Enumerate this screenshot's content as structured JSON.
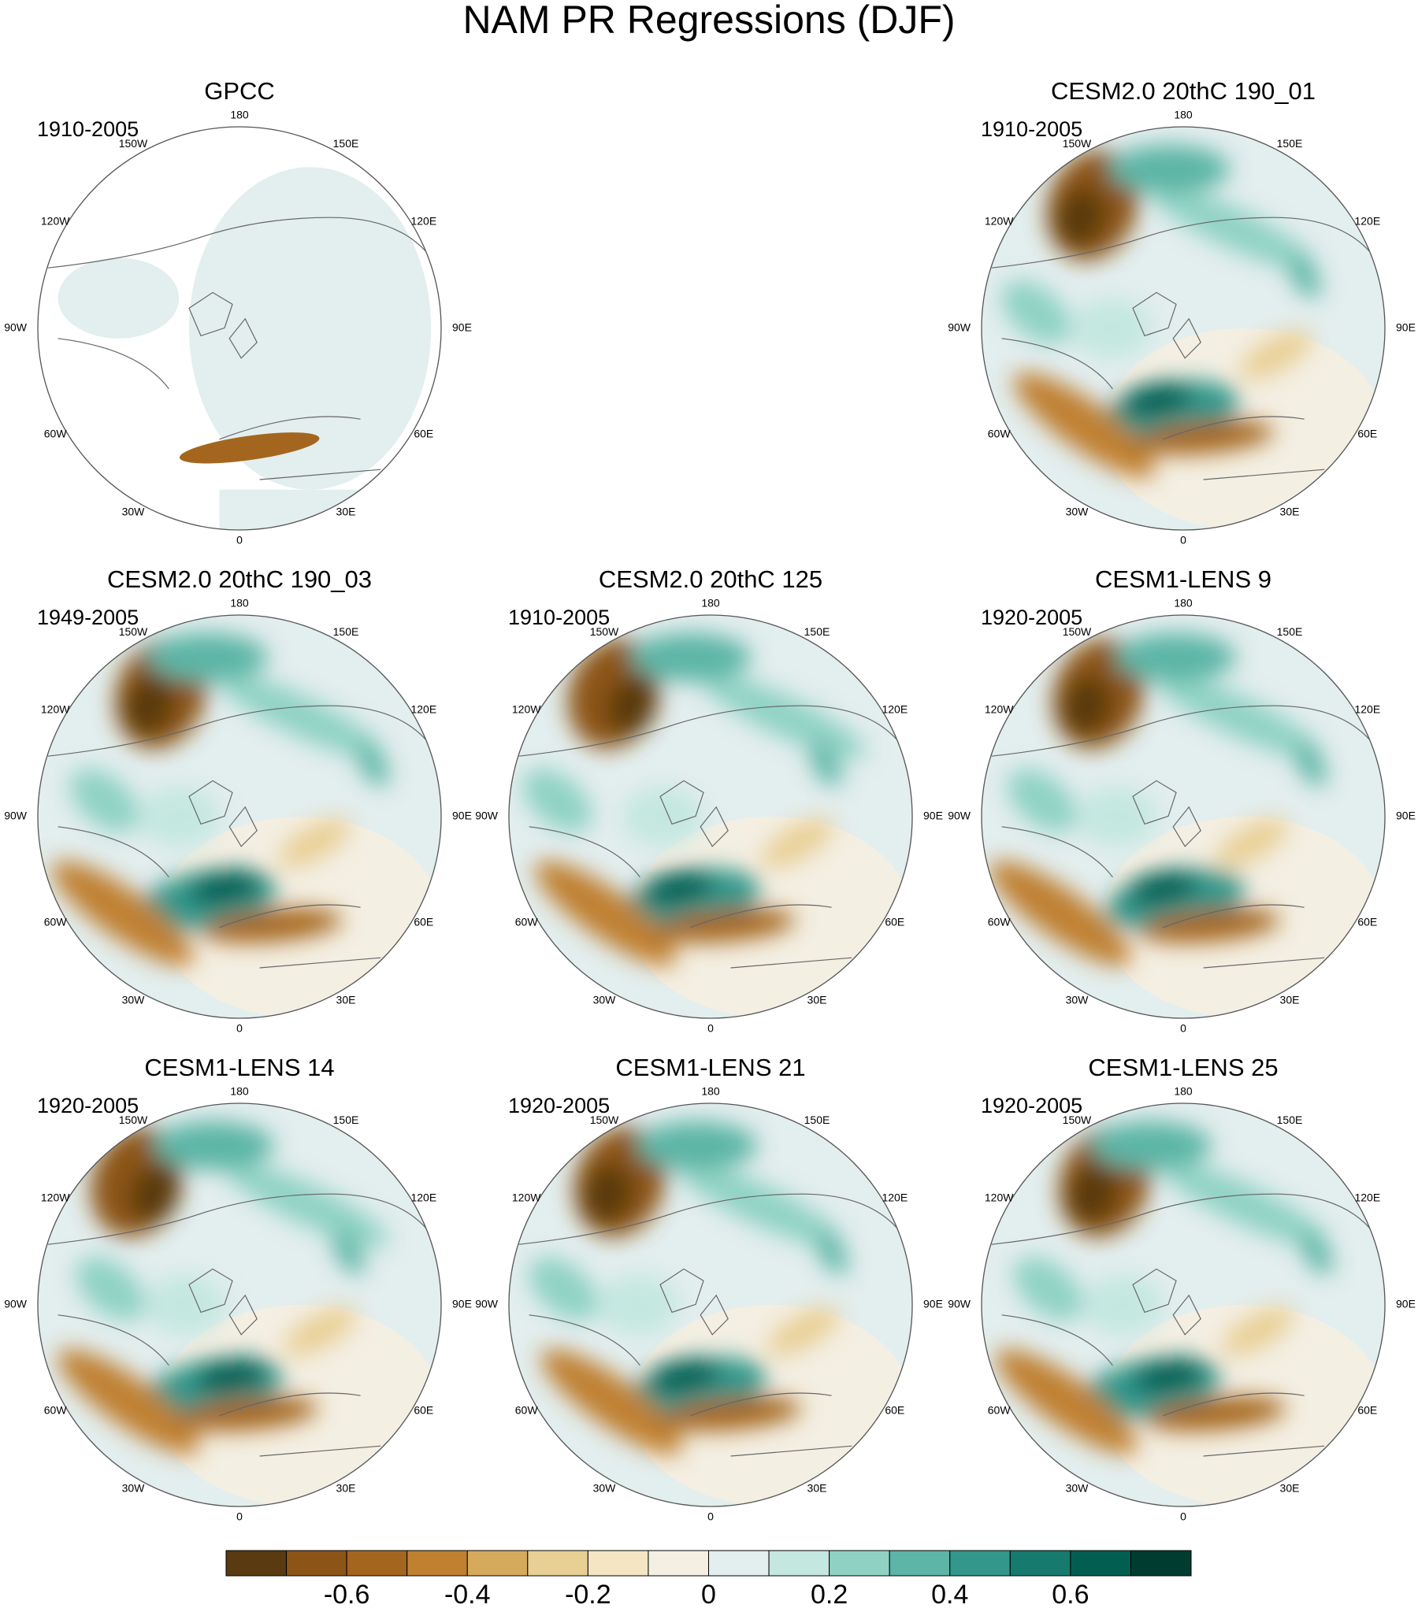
{
  "title": "NAM PR Regressions (DJF)",
  "longitude_labels": [
    "180",
    "150E",
    "120E",
    "90E",
    "60E",
    "30E",
    "0",
    "30W",
    "60W",
    "90W",
    "120W",
    "150W"
  ],
  "panels": [
    {
      "title": "GPCC",
      "period": "1910-2005"
    },
    {
      "title": "CESM2.0 20thC 190_01",
      "period": "1910-2005"
    },
    {
      "title": "CESM2.0 20thC 190_03",
      "period": "1949-2005"
    },
    {
      "title": "CESM2.0 20thC 125",
      "period": "1910-2005"
    },
    {
      "title": "CESM1-LENS 9",
      "period": "1920-2005"
    },
    {
      "title": "CESM1-LENS 14",
      "period": "1920-2005"
    },
    {
      "title": "CESM1-LENS 21",
      "period": "1920-2005"
    },
    {
      "title": "CESM1-LENS 25",
      "period": "1920-2005"
    }
  ],
  "colorbar": {
    "lim": [
      -0.8,
      0.8
    ],
    "colors": [
      "#5a3a10",
      "#8c5417",
      "#a4661e",
      "#bf8030",
      "#d6aa5c",
      "#e8cf94",
      "#f5e6c3",
      "#f4efe3",
      "#e3eeee",
      "#c4e7e0",
      "#8fd2c4",
      "#5cb5a6",
      "#33978b",
      "#177a6e",
      "#035e52",
      "#003c30"
    ],
    "ticks": [
      -0.6,
      -0.4,
      -0.2,
      0,
      0.2,
      0.4,
      0.6
    ]
  }
}
